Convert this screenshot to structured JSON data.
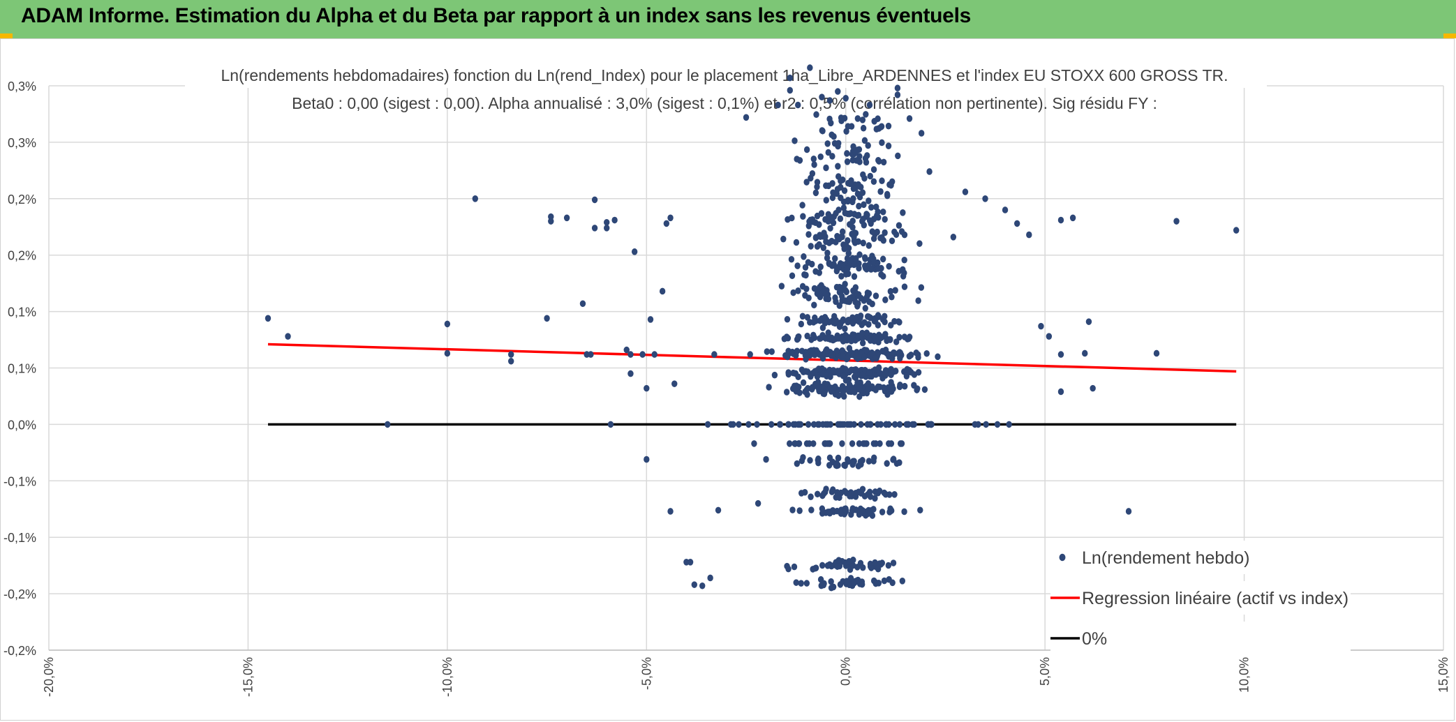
{
  "header": {
    "title": "ADAM Informe. Estimation du Alpha et du Beta par rapport à un index sans les revenus éventuels",
    "background": "#7dc676",
    "corner_color": "#f5b800"
  },
  "chart_data": {
    "type": "scatter",
    "title": "Ln(rendements hebdomadaires) fonction du Ln(rend_Index) pour le placement 1ha_Libre_ARDENNES et l'index EU STOXX 600 GROSS TR.",
    "subtitle": "Beta0 : 0,00 (sigest : 0,00). Alpha annualisé : 3,0% (sigest : 0,1%) et r2 : 0,5% (corrélation non pertinente). Sig résidu FY :",
    "xlabel": "",
    "ylabel": "",
    "xlim": [
      -20,
      15
    ],
    "ylim": [
      -0.2,
      0.3
    ],
    "x_tick_labels": [
      "-20,0%",
      "-15,0%",
      "-10,0%",
      "-5,0%",
      "0,0%",
      "5,0%",
      "10,0%",
      "15,0%"
    ],
    "y_tick_labels": [
      "-0,2%",
      "-0,2%",
      "-0,1%",
      "-0,1%",
      "0,0%",
      "0,1%",
      "0,1%",
      "0,2%",
      "0,2%",
      "0,3%",
      "0,3%"
    ],
    "series": [
      {
        "name": "Ln(rendement hebdo)",
        "color": "#2e4777",
        "note": "cluster of weekly points, mostly x in [-5%, 5%], banded y levels",
        "points": [
          [
            -14.5,
            0.094
          ],
          [
            -14.0,
            0.078
          ],
          [
            -11.5,
            0.0
          ],
          [
            -10.0,
            0.063
          ],
          [
            -10.0,
            0.089
          ],
          [
            -9.3,
            0.2
          ],
          [
            -8.4,
            0.056
          ],
          [
            -8.4,
            0.062
          ],
          [
            -7.5,
            0.094
          ],
          [
            -7.4,
            0.18
          ],
          [
            -7.4,
            0.184
          ],
          [
            -7.0,
            0.183
          ],
          [
            -6.6,
            0.107
          ],
          [
            -6.5,
            0.062
          ],
          [
            -6.4,
            0.062
          ],
          [
            -6.3,
            0.174
          ],
          [
            -6.3,
            0.199
          ],
          [
            -6.0,
            0.179
          ],
          [
            -6.0,
            0.174
          ],
          [
            -5.9,
            0.0
          ],
          [
            -5.8,
            0.181
          ],
          [
            -5.5,
            0.066
          ],
          [
            -5.4,
            0.062
          ],
          [
            -5.4,
            0.045
          ],
          [
            -5.3,
            0.153
          ],
          [
            -5.1,
            0.062
          ],
          [
            -5.0,
            0.032
          ],
          [
            -5.0,
            -0.031
          ],
          [
            -4.9,
            0.093
          ],
          [
            -4.8,
            0.062
          ],
          [
            -4.6,
            0.118
          ],
          [
            -4.5,
            0.178
          ],
          [
            -4.4,
            0.183
          ],
          [
            -4.3,
            0.036
          ],
          [
            -4.4,
            -0.077
          ],
          [
            -4.0,
            -0.122
          ],
          [
            -3.9,
            -0.122
          ],
          [
            -3.8,
            -0.142
          ],
          [
            -3.6,
            -0.143
          ],
          [
            -3.4,
            -0.136
          ],
          [
            -3.2,
            -0.076
          ],
          [
            -3.3,
            0.062
          ],
          [
            -2.5,
            0.272
          ],
          [
            -2.4,
            0.062
          ],
          [
            -2.3,
            -0.017
          ],
          [
            -2.2,
            -0.07
          ],
          [
            -2.0,
            -0.031
          ],
          [
            -1.7,
            0.283
          ],
          [
            -1.4,
            0.296
          ],
          [
            -1.4,
            0.307
          ],
          [
            -1.2,
            0.283
          ],
          [
            -0.9,
            0.316
          ],
          [
            -0.6,
            0.29
          ],
          [
            -0.4,
            0.287
          ],
          [
            -0.2,
            0.295
          ],
          [
            0.0,
            0.289
          ],
          [
            0.3,
            0.271
          ],
          [
            0.6,
            0.283
          ],
          [
            0.9,
            0.264
          ],
          [
            1.3,
            0.298
          ],
          [
            1.3,
            0.292
          ],
          [
            1.6,
            0.271
          ],
          [
            1.9,
            0.258
          ],
          [
            2.1,
            0.224
          ],
          [
            2.7,
            0.166
          ],
          [
            3.0,
            0.206
          ],
          [
            3.5,
            0.2
          ],
          [
            4.0,
            0.19
          ],
          [
            4.3,
            0.178
          ],
          [
            4.6,
            0.168
          ],
          [
            4.9,
            0.087
          ],
          [
            5.1,
            0.078
          ],
          [
            5.4,
            0.062
          ],
          [
            5.4,
            0.029
          ],
          [
            5.4,
            0.181
          ],
          [
            5.7,
            0.183
          ],
          [
            6.0,
            0.063
          ],
          [
            6.1,
            0.091
          ],
          [
            6.2,
            0.032
          ],
          [
            7.1,
            -0.077
          ],
          [
            7.8,
            0.063
          ],
          [
            8.3,
            0.18
          ],
          [
            9.8,
            0.172
          ]
        ]
      },
      {
        "name": "Regression linéaire (actif vs index)",
        "color": "#ff0000",
        "type": "line",
        "points": [
          [
            -14.5,
            0.071
          ],
          [
            9.8,
            0.047
          ]
        ]
      },
      {
        "name": "0%",
        "color": "#000000",
        "type": "line",
        "points": [
          [
            -14.5,
            0.0
          ],
          [
            9.8,
            0.0
          ]
        ]
      }
    ],
    "legend": [
      {
        "name": "Ln(rendement hebdo)",
        "marker": "dot",
        "color": "#2e4777"
      },
      {
        "name": "Regression linéaire (actif vs index)",
        "marker": "line",
        "color": "#ff0000"
      },
      {
        "name": "0%",
        "marker": "line",
        "color": "#000000"
      }
    ],
    "legend_position": "bottom-right",
    "grid": true
  }
}
